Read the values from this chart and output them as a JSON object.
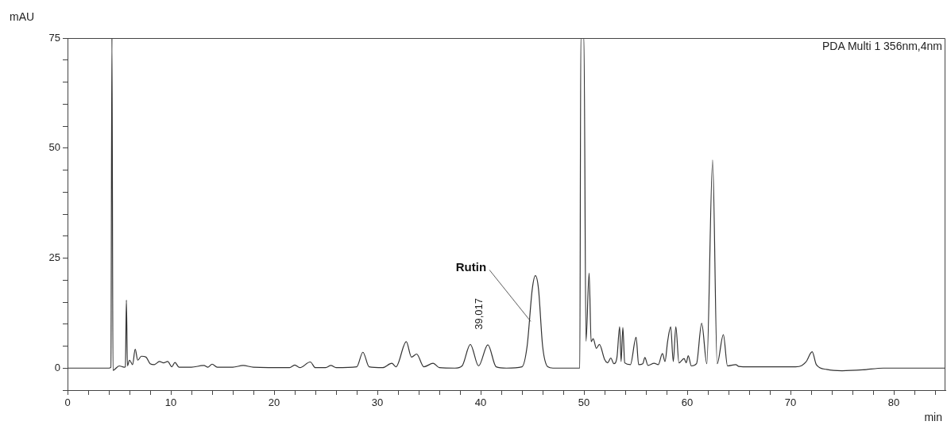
{
  "chart_data": {
    "type": "line",
    "xlabel": "min",
    "ylabel": "mAU",
    "annotations": [
      "PDA Multi 1 356nm,4nm",
      {
        "text": "Rutin",
        "x": 44.85,
        "y": 10.6
      },
      {
        "text": "39,017",
        "x": 39.0,
        "y": 5.5
      }
    ],
    "xlim": [
      0,
      85
    ],
    "ylim": [
      -5,
      75
    ],
    "xticks": [
      0,
      {
        "value": 2,
        "label": null
      },
      {
        "value": 4,
        "label": null
      },
      {
        "value": 6,
        "label": null
      },
      {
        "value": 8,
        "label": null
      },
      10,
      {
        "value": 12,
        "label": null
      },
      {
        "value": 14,
        "label": null
      },
      {
        "value": 16,
        "label": null
      },
      {
        "value": 18,
        "label": null
      },
      20,
      {
        "value": 22,
        "label": null
      },
      {
        "value": 24,
        "label": null
      },
      {
        "value": 26,
        "label": null
      },
      {
        "value": 28,
        "label": null
      },
      30,
      {
        "value": 32,
        "label": null
      },
      {
        "value": 34,
        "label": null
      },
      {
        "value": 36,
        "label": null
      },
      {
        "value": 38,
        "label": null
      },
      40,
      {
        "value": 42,
        "label": null
      },
      {
        "value": 44,
        "label": null
      },
      {
        "value": 46,
        "label": null
      },
      {
        "value": 48,
        "label": null
      },
      50,
      {
        "value": 52,
        "label": null
      },
      {
        "value": 54,
        "label": null
      },
      {
        "value": 56,
        "label": null
      },
      {
        "value": 58,
        "label": null
      },
      60,
      {
        "value": 62,
        "label": null
      },
      {
        "value": 64,
        "label": null
      },
      {
        "value": 66,
        "label": null
      },
      {
        "value": 68,
        "label": null
      },
      70,
      {
        "value": 72,
        "label": null
      },
      {
        "value": 74,
        "label": null
      },
      {
        "value": 76,
        "label": null
      },
      {
        "value": 78,
        "label": null
      },
      80,
      {
        "value": 82,
        "label": null
      },
      {
        "value": 84,
        "label": null
      }
    ],
    "yticks": [
      {
        "value": -5,
        "label": null
      },
      0,
      {
        "value": 5,
        "label": null
      },
      {
        "value": 10,
        "label": null
      },
      {
        "value": 15,
        "label": null
      },
      {
        "value": 20,
        "label": null
      },
      25,
      {
        "value": 30,
        "label": null
      },
      {
        "value": 35,
        "label": null
      },
      {
        "value": 40,
        "label": null
      },
      {
        "value": 45,
        "label": null
      },
      50,
      {
        "value": 55,
        "label": null
      },
      {
        "value": 60,
        "label": null
      },
      {
        "value": 65,
        "label": null
      },
      {
        "value": 70,
        "label": null
      },
      75
    ],
    "grid": false,
    "legend": false,
    "marker": "none",
    "line_style": "solid",
    "series": [
      {
        "color": "#333333",
        "x": [
          0,
          4.0,
          4.2,
          4.3,
          4.4,
          5.0,
          5.5,
          5.6,
          5.7,
          5.8,
          6.0,
          6.3,
          6.55,
          6.8,
          7.15,
          7.6,
          8.0,
          8.4,
          8.9,
          9.3,
          9.7,
          10.1,
          10.4,
          10.8,
          12,
          13.2,
          13.6,
          14.0,
          14.5,
          16,
          17,
          18,
          21.5,
          22,
          22.5,
          23.5,
          24,
          25,
          25.5,
          26,
          28,
          28.6,
          29.2,
          30.5,
          31.4,
          31.8,
          32.8,
          33.3,
          33.8,
          34.5,
          35.4,
          36,
          37.5,
          38.2,
          39.0,
          39.8,
          40.7,
          41.5,
          42.5,
          44.0,
          44.5,
          45.0,
          45.3,
          45.6,
          46.0,
          46.5,
          47,
          49.6,
          49.7,
          50.0,
          50.2,
          50.5,
          50.7,
          50.9,
          51.2,
          51.5,
          52,
          52.3,
          52.6,
          52.9,
          53.2,
          53.46,
          53.6,
          53.77,
          53.95,
          54.5,
          55.05,
          55.3,
          55.7,
          55.9,
          56.2,
          56.8,
          57.2,
          57.6,
          57.85,
          58.1,
          58.4,
          58.65,
          58.9,
          59.2,
          59.7,
          59.9,
          60.1,
          60.4,
          60.9,
          61.4,
          61.9,
          62.46,
          62.9,
          63.5,
          63.9,
          64.7,
          65,
          66,
          70.5,
          71.1,
          71.5,
          72.1,
          72.5,
          73.5,
          75,
          77,
          79,
          85
        ],
        "values": [
          0,
          0,
          0.2,
          75,
          -0.5,
          0.5,
          0.2,
          0.3,
          15.5,
          0.5,
          1.8,
          0.8,
          4.3,
          1.8,
          2.7,
          2.5,
          1.0,
          0.8,
          1.5,
          1.2,
          1.5,
          0.3,
          1.3,
          0.2,
          0.2,
          0.6,
          0.2,
          0.9,
          0.2,
          0.2,
          0.6,
          0.2,
          0.1,
          0.7,
          0.1,
          1.4,
          0.1,
          0.1,
          0.6,
          0.1,
          0.3,
          3.6,
          0.3,
          0.1,
          1.1,
          0.3,
          6.0,
          2.5,
          3.2,
          0.3,
          1.1,
          0.1,
          0,
          0.5,
          5.4,
          0.5,
          5.3,
          0.3,
          0,
          0.3,
          5,
          18,
          21.0,
          18,
          5,
          0.3,
          0,
          0,
          75,
          75,
          6.1,
          21.6,
          6,
          6.7,
          4.5,
          5.4,
          2,
          1.2,
          2.3,
          1.0,
          2.5,
          9.4,
          1.5,
          9.2,
          1.2,
          0.8,
          7.0,
          0.8,
          1.0,
          2.4,
          0.6,
          1.1,
          0.8,
          3.3,
          1.5,
          6.0,
          9.4,
          1.5,
          9.4,
          1.2,
          2.2,
          1.2,
          2.8,
          0.5,
          1.0,
          10.2,
          1.0,
          47.3,
          1.0,
          7.6,
          0.5,
          0.8,
          0.4,
          0.3,
          0.3,
          0.6,
          1.4,
          3.7,
          0.8,
          -0.3,
          -0.6,
          -0.4,
          0,
          0
        ]
      }
    ]
  }
}
